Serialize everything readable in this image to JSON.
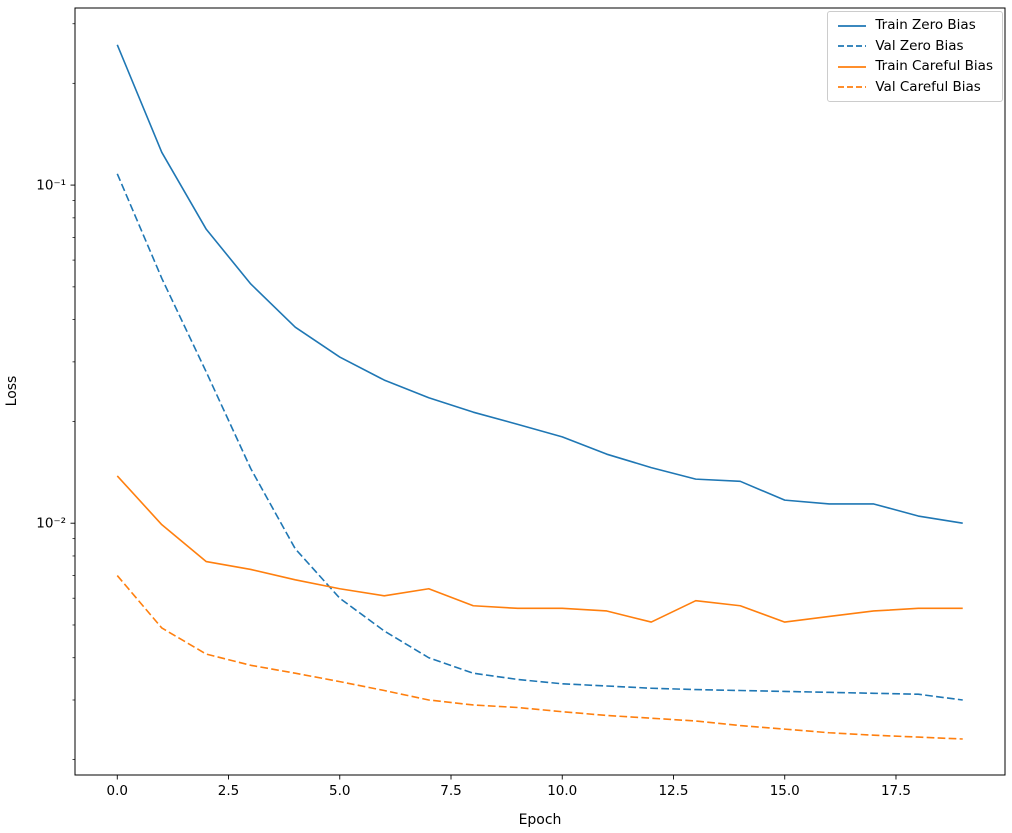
{
  "figure": {
    "background": "#ffffff"
  },
  "chart_data": {
    "type": "line",
    "title": "",
    "xlabel": "Epoch",
    "ylabel": "Loss",
    "yscale": "log",
    "grid": false,
    "legend_position": "upper right",
    "xlim": [
      -0.95,
      19.95
    ],
    "ylim": [
      0.0018,
      0.334
    ],
    "x_ticks": [
      0.0,
      2.5,
      5.0,
      7.5,
      10.0,
      12.5,
      15.0,
      17.5
    ],
    "x_tick_labels": [
      "0.0",
      "2.5",
      "5.0",
      "7.5",
      "10.0",
      "12.5",
      "15.0",
      "17.5"
    ],
    "y_ticks": [
      0.1,
      0.01
    ],
    "y_tick_labels": [
      "10⁻¹",
      "10⁻²"
    ],
    "x": [
      0,
      1,
      2,
      3,
      4,
      5,
      6,
      7,
      8,
      9,
      10,
      11,
      12,
      13,
      14,
      15,
      16,
      17,
      18,
      19
    ],
    "series": [
      {
        "name": "Train Zero Bias",
        "color": "#1f77b4",
        "style": "solid",
        "values": [
          0.26,
          0.125,
          0.074,
          0.051,
          0.038,
          0.031,
          0.0265,
          0.0235,
          0.0213,
          0.0196,
          0.018,
          0.016,
          0.0146,
          0.0135,
          0.0133,
          0.0117,
          0.0114,
          0.0114,
          0.0105,
          0.01
        ]
      },
      {
        "name": "Val Zero Bias",
        "color": "#1f77b4",
        "style": "dashed",
        "values": [
          0.108,
          0.053,
          0.028,
          0.0145,
          0.0084,
          0.006,
          0.0048,
          0.004,
          0.0036,
          0.00345,
          0.00335,
          0.0033,
          0.00325,
          0.00322,
          0.0032,
          0.00318,
          0.00316,
          0.00314,
          0.00312,
          0.003
        ]
      },
      {
        "name": "Train Careful Bias",
        "color": "#ff7f0e",
        "style": "solid",
        "values": [
          0.0138,
          0.0099,
          0.0077,
          0.0073,
          0.0068,
          0.0064,
          0.0061,
          0.0064,
          0.0057,
          0.0056,
          0.0056,
          0.0055,
          0.0051,
          0.0059,
          0.0057,
          0.0051,
          0.0053,
          0.0055,
          0.0056,
          0.0056
        ]
      },
      {
        "name": "Val Careful Bias",
        "color": "#ff7f0e",
        "style": "dashed",
        "values": [
          0.007,
          0.0049,
          0.0041,
          0.0038,
          0.0036,
          0.0034,
          0.0032,
          0.003,
          0.0029,
          0.00285,
          0.00277,
          0.0027,
          0.00265,
          0.0026,
          0.00252,
          0.00246,
          0.0024,
          0.00236,
          0.00233,
          0.0023
        ]
      }
    ]
  }
}
